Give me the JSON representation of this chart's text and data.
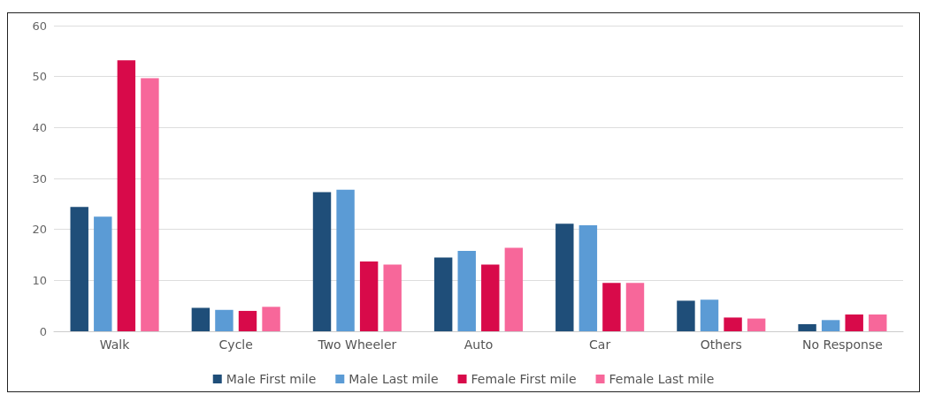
{
  "chart_data": {
    "type": "bar",
    "categories": [
      "Walk",
      "Cycle",
      "Two Wheeler",
      "Auto",
      "Car",
      "Others",
      "No Response"
    ],
    "series": [
      {
        "name": "Male First mile",
        "color": "#1f4e79",
        "values": [
          24.4,
          4.6,
          27.3,
          14.5,
          21.1,
          6.0,
          1.4
        ]
      },
      {
        "name": "Male Last mile",
        "color": "#5b9bd5",
        "values": [
          22.5,
          4.2,
          27.8,
          15.8,
          20.8,
          6.2,
          2.2
        ]
      },
      {
        "name": "Female First mile",
        "color": "#d80a4a",
        "values": [
          53.2,
          4.0,
          13.7,
          13.1,
          9.5,
          2.7,
          3.3
        ]
      },
      {
        "name": "Female Last mile",
        "color": "#f7679a",
        "values": [
          49.7,
          4.8,
          13.1,
          16.4,
          9.5,
          2.5,
          3.3
        ]
      }
    ],
    "ylim": [
      0,
      60
    ],
    "yticks": [
      0,
      10,
      20,
      30,
      40,
      50,
      60
    ],
    "grid": "y",
    "legend": "bottom"
  }
}
